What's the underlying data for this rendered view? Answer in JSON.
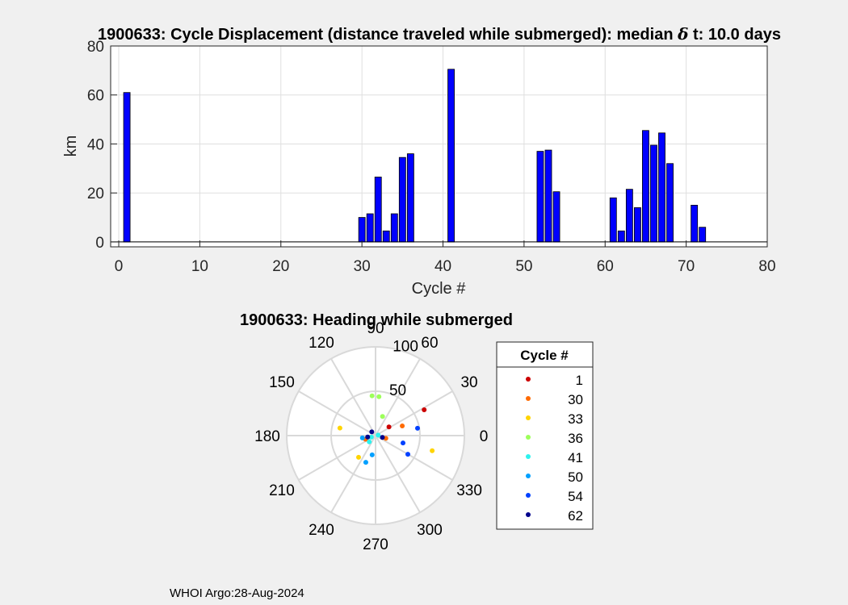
{
  "footer": "WHOI Argo:28-Aug-2024",
  "colors": {
    "bar_fill": "#0000ff",
    "bar_edge": "#000000",
    "background": "#f0f0f0",
    "axes_bg": "#ffffff",
    "grid": "#dfdfdf"
  },
  "chart_data": [
    {
      "type": "bar",
      "title": "1900633: Cycle Displacement (distance traveled while submerged):   median δ t: 10.0 days",
      "title_parts": [
        "1900633: Cycle Displacement (distance traveled while submerged):   median ",
        "δ",
        " t: 10.0 days"
      ],
      "xlabel": "Cycle #",
      "ylabel": "km",
      "xlim": [
        -1,
        80
      ],
      "ylim": [
        -2,
        80
      ],
      "xticks": [
        0,
        10,
        20,
        30,
        40,
        50,
        60,
        70,
        80
      ],
      "yticks": [
        0,
        20,
        40,
        60,
        80
      ],
      "grid": true,
      "x": [
        1,
        30,
        31,
        32,
        33,
        34,
        35,
        36,
        41,
        52,
        53,
        54,
        61,
        62,
        63,
        64,
        65,
        66,
        67,
        68,
        71,
        72
      ],
      "values": [
        61,
        10,
        11.5,
        26.5,
        4.5,
        11.5,
        34.5,
        36,
        70.5,
        37,
        37.5,
        20.5,
        18,
        4.5,
        21.5,
        14,
        45.5,
        39.5,
        44.5,
        32,
        15,
        6
      ]
    },
    {
      "type": "scatter",
      "subtype": "polar",
      "title": "1900633: Heading while submerged",
      "theta_ticks": [
        0,
        30,
        60,
        90,
        120,
        150,
        180,
        210,
        240,
        270,
        300,
        330
      ],
      "r_ticks": [
        50,
        100
      ],
      "rlim": [
        0,
        100
      ],
      "legend_title": "Cycle #",
      "legend_position": "right",
      "legend": [
        {
          "label": "1",
          "color": "#cc0000"
        },
        {
          "label": "30",
          "color": "#ff6a00"
        },
        {
          "label": "33",
          "color": "#ffd400"
        },
        {
          "label": "36",
          "color": "#9dff5a"
        },
        {
          "label": "41",
          "color": "#2ef2ee"
        },
        {
          "label": "50",
          "color": "#00a0ff"
        },
        {
          "label": "54",
          "color": "#0040ff"
        },
        {
          "label": "62",
          "color": "#00008b"
        }
      ],
      "points": [
        {
          "theta": 28,
          "r": 62,
          "color": "#cc0000"
        },
        {
          "theta": 33,
          "r": 18,
          "color": "#cc0000"
        },
        {
          "theta": 20,
          "r": 32,
          "color": "#ff6a00"
        },
        {
          "theta": 345,
          "r": 12,
          "color": "#ff6a00"
        },
        {
          "theta": 200,
          "r": 12,
          "color": "#ff6a00"
        },
        {
          "theta": 345,
          "r": 66,
          "color": "#ffd400"
        },
        {
          "theta": 168,
          "r": 41,
          "color": "#ffd400"
        },
        {
          "theta": 232,
          "r": 31,
          "color": "#ffd400"
        },
        {
          "theta": 95,
          "r": 45,
          "color": "#9dff5a"
        },
        {
          "theta": 85,
          "r": 44,
          "color": "#9dff5a"
        },
        {
          "theta": 70,
          "r": 23,
          "color": "#9dff5a"
        },
        {
          "theta": 200,
          "r": 5,
          "color": "#2ef2ee"
        },
        {
          "theta": 225,
          "r": 10,
          "color": "#2ef2ee"
        },
        {
          "theta": 10,
          "r": 3,
          "color": "#2ef2ee"
        },
        {
          "theta": 260,
          "r": 22,
          "color": "#00a0ff"
        },
        {
          "theta": 250,
          "r": 32,
          "color": "#00a0ff"
        },
        {
          "theta": 190,
          "r": 15,
          "color": "#00a0ff"
        },
        {
          "theta": 330,
          "r": 42,
          "color": "#0040ff"
        },
        {
          "theta": 345,
          "r": 32,
          "color": "#0040ff"
        },
        {
          "theta": 10,
          "r": 48,
          "color": "#0040ff"
        },
        {
          "theta": 345,
          "r": 8,
          "color": "#00008b"
        },
        {
          "theta": 190,
          "r": 9,
          "color": "#00008b"
        },
        {
          "theta": 135,
          "r": 6,
          "color": "#00008b"
        }
      ]
    }
  ]
}
